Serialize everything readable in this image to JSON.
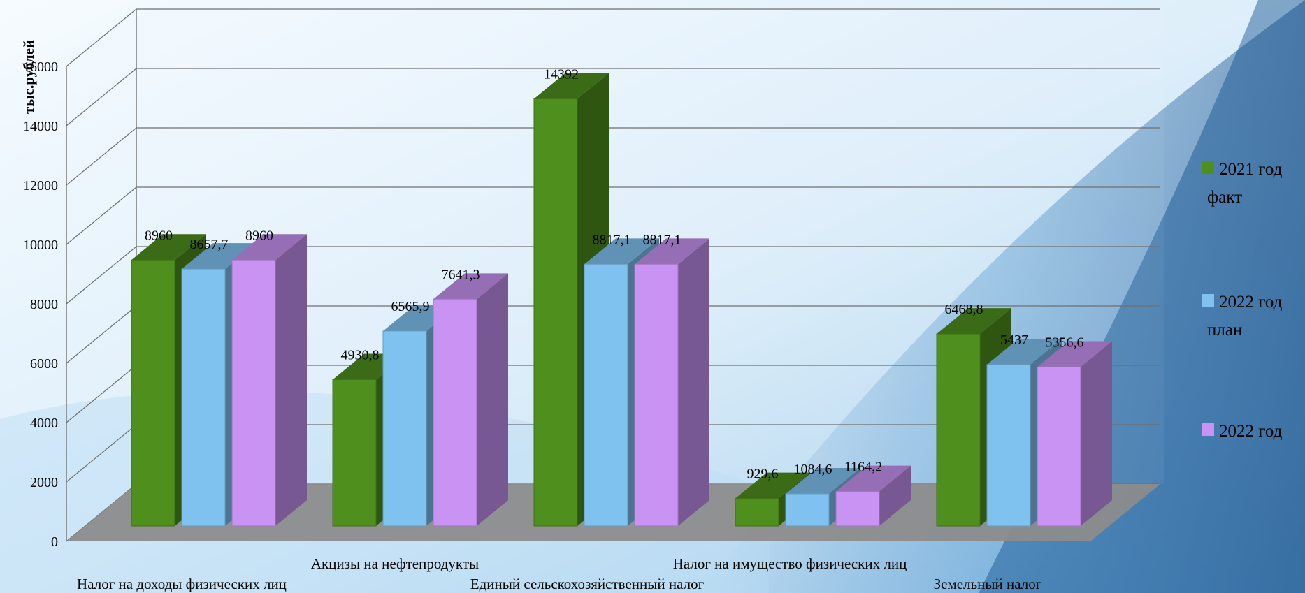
{
  "chart_data": {
    "type": "bar",
    "categories": [
      "Налог на доходы физических лиц",
      "Акцизы на нефтепродукты",
      "Единый сельскохозяйственный налог",
      "Налог на имущество физических лиц",
      "Земельный налог"
    ],
    "series": [
      {
        "name": "2021 год факт",
        "values": [
          8960,
          4930.8,
          14392,
          929.6,
          6468.8
        ],
        "labels": [
          "8960",
          "4930,8",
          "14392",
          "929,6",
          "6468,8"
        ],
        "color": "#4f8f1d"
      },
      {
        "name": "2022 год план",
        "values": [
          8657.7,
          6565.9,
          8817.1,
          1084.6,
          5437
        ],
        "labels": [
          "8657,7",
          "6565,9",
          "8817,1",
          "1084,6",
          "5437"
        ],
        "color": "#7fc2f0"
      },
      {
        "name": "2022 год",
        "values": [
          8960,
          7641.3,
          8817.1,
          1164.2,
          5356.6
        ],
        "labels": [
          "8960",
          "7641,3",
          "8817,1",
          "1164,2",
          "5356,6"
        ],
        "color": "#c893f3"
      }
    ],
    "legend_lines": [
      [
        "2021 год",
        "факт"
      ],
      [
        "2022 год",
        "план"
      ],
      [
        "2022 год",
        ""
      ]
    ],
    "ylabel": "тыс.рублей",
    "yticks": [
      0,
      2000,
      4000,
      6000,
      8000,
      10000,
      12000,
      14000,
      16000
    ],
    "ylim": [
      0,
      16000
    ],
    "grid": true,
    "legend_position": "right",
    "style": "3d-column"
  }
}
